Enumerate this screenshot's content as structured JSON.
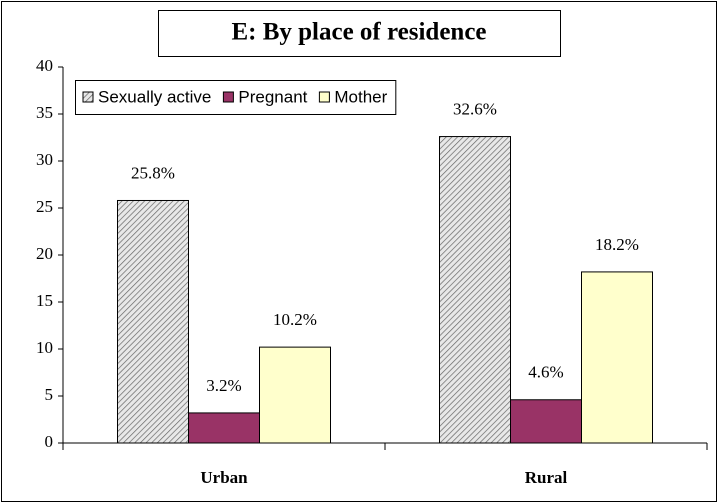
{
  "chart_data": {
    "type": "bar",
    "title": "E: By place of residence",
    "categories": [
      "Urban",
      "Rural"
    ],
    "series": [
      {
        "name": "Sexually active",
        "color": "#c0c0c0",
        "hatch": true,
        "values": [
          25.8,
          32.6
        ],
        "value_labels": [
          "25.8%",
          "32.6%"
        ]
      },
      {
        "name": "Pregnant",
        "color": "#993366",
        "values": [
          3.2,
          4.6
        ],
        "value_labels": [
          "3.2%",
          "4.6%"
        ]
      },
      {
        "name": "Mother",
        "color": "#ffffcc",
        "values": [
          10.2,
          18.2
        ],
        "value_labels": [
          "10.2%",
          "18.2%"
        ]
      }
    ],
    "ylim": [
      0,
      40
    ],
    "yticks": [
      0,
      5,
      10,
      15,
      20,
      25,
      30,
      35,
      40
    ],
    "grid": false,
    "legend": "top-left"
  }
}
